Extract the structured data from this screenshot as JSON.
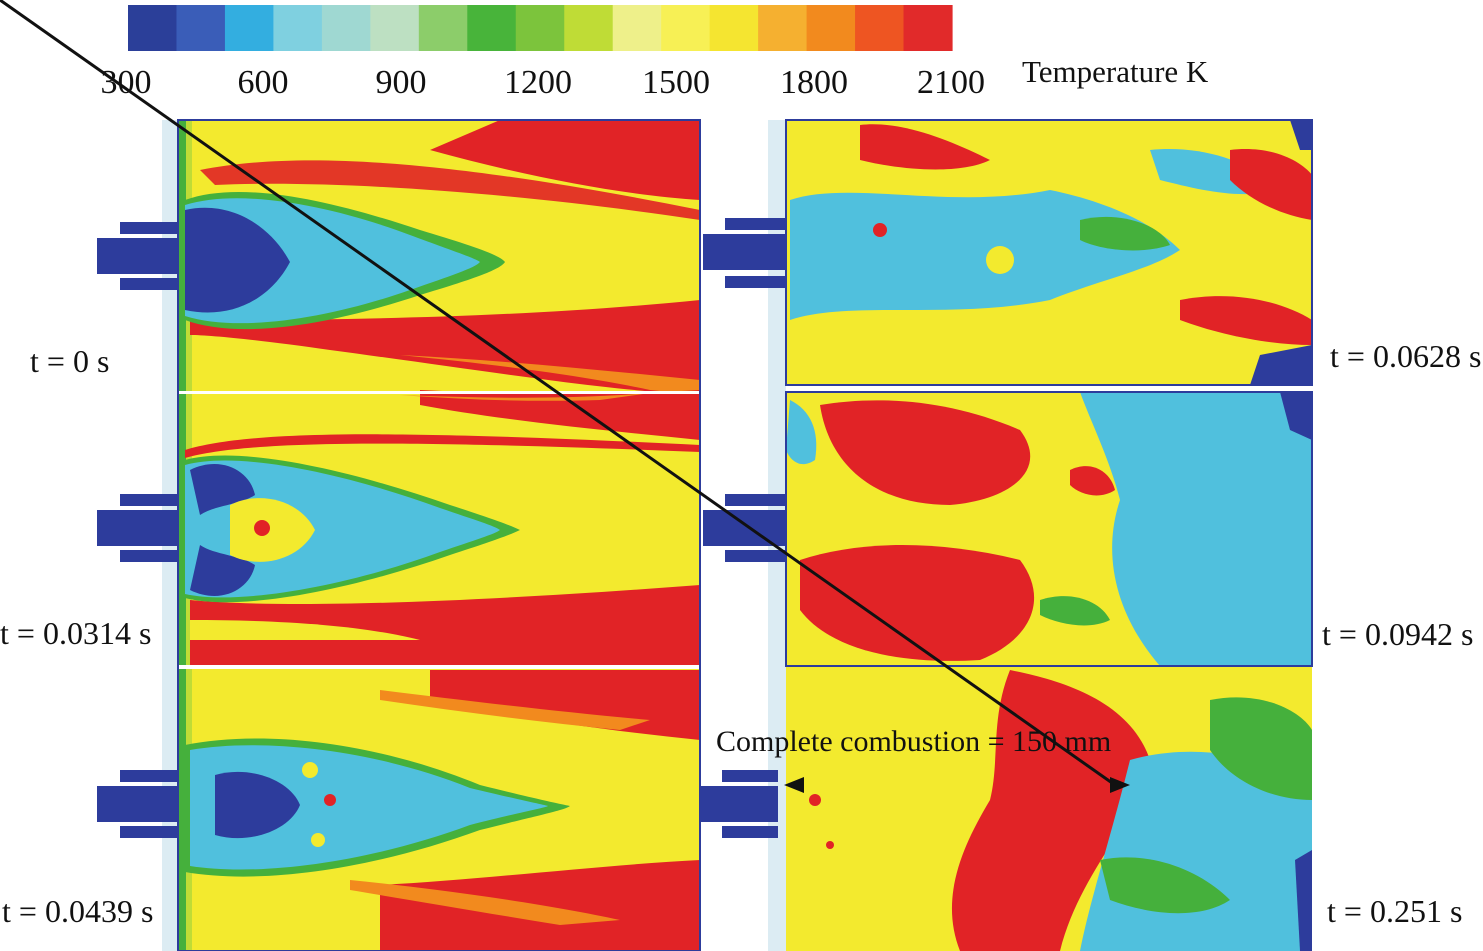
{
  "colorbar": {
    "ticks": [
      "300",
      "600",
      "900",
      "1200",
      "1500",
      "1800",
      "2100"
    ],
    "quantity_label": "Temperature K",
    "colors": [
      "#2b3f99",
      "#3a5db8",
      "#33aee0",
      "#7fd0e0",
      "#9fd8d2",
      "#bde0c2",
      "#8ccd6a",
      "#48b43a",
      "#7cc43c",
      "#bfdc36",
      "#eef08a",
      "#f7f055",
      "#f5e530",
      "#f5b030",
      "#f28a1e",
      "#ee5522",
      "#e12a2a"
    ]
  },
  "panels": [
    {
      "time_label": "t = 0 s"
    },
    {
      "time_label": "t = 0.0314 s"
    },
    {
      "time_label": "t = 0.0439 s"
    },
    {
      "time_label": "t = 0.0628 s"
    },
    {
      "time_label": "t = 0.0942 s"
    },
    {
      "time_label": "t = 0.251 s"
    }
  ],
  "annotation": {
    "text": "Complete combustion = 150 mm"
  },
  "palette": {
    "cold": "#2d3c9c",
    "cool": "#50c0dd",
    "mid": "#45b03c",
    "warm": "#f3ea2e",
    "hot": "#f28a1e",
    "hottest": "#e12326",
    "wall": "#dcecf3"
  }
}
